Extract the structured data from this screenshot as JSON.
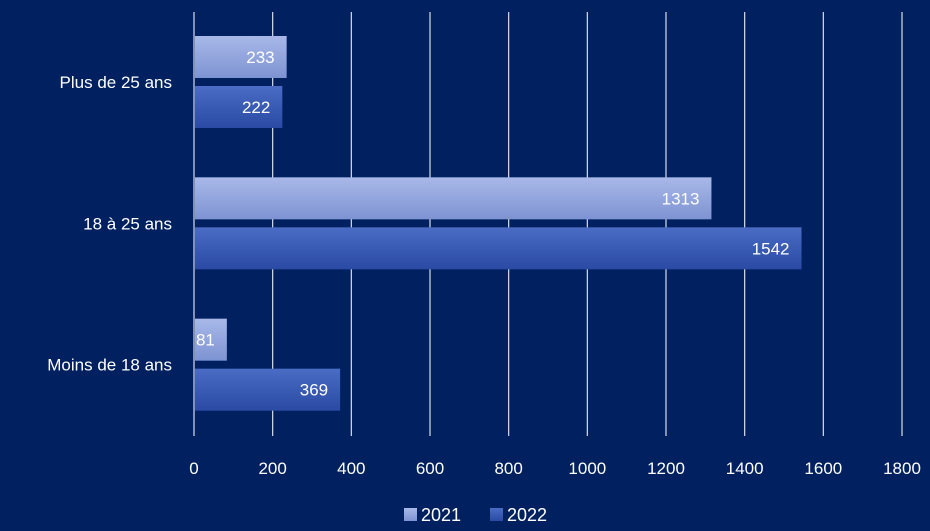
{
  "chart_data": {
    "type": "bar",
    "orientation": "horizontal",
    "categories": [
      "Plus de 25 ans",
      "18 à 25 ans",
      "Moins de 18 ans"
    ],
    "series": [
      {
        "name": "2021",
        "values": [
          233,
          1313,
          81
        ],
        "color": "#8ea3dd"
      },
      {
        "name": "2022",
        "values": [
          222,
          1542,
          369
        ],
        "color": "#3355b0"
      }
    ],
    "xlim": [
      0,
      1800
    ],
    "xticks": [
      0,
      200,
      400,
      600,
      800,
      1000,
      1200,
      1400,
      1600,
      1800
    ],
    "grid": true,
    "legend": "bottom",
    "background": "#002060",
    "grid_color": "#ffffff",
    "text_color": "#ffffff"
  }
}
